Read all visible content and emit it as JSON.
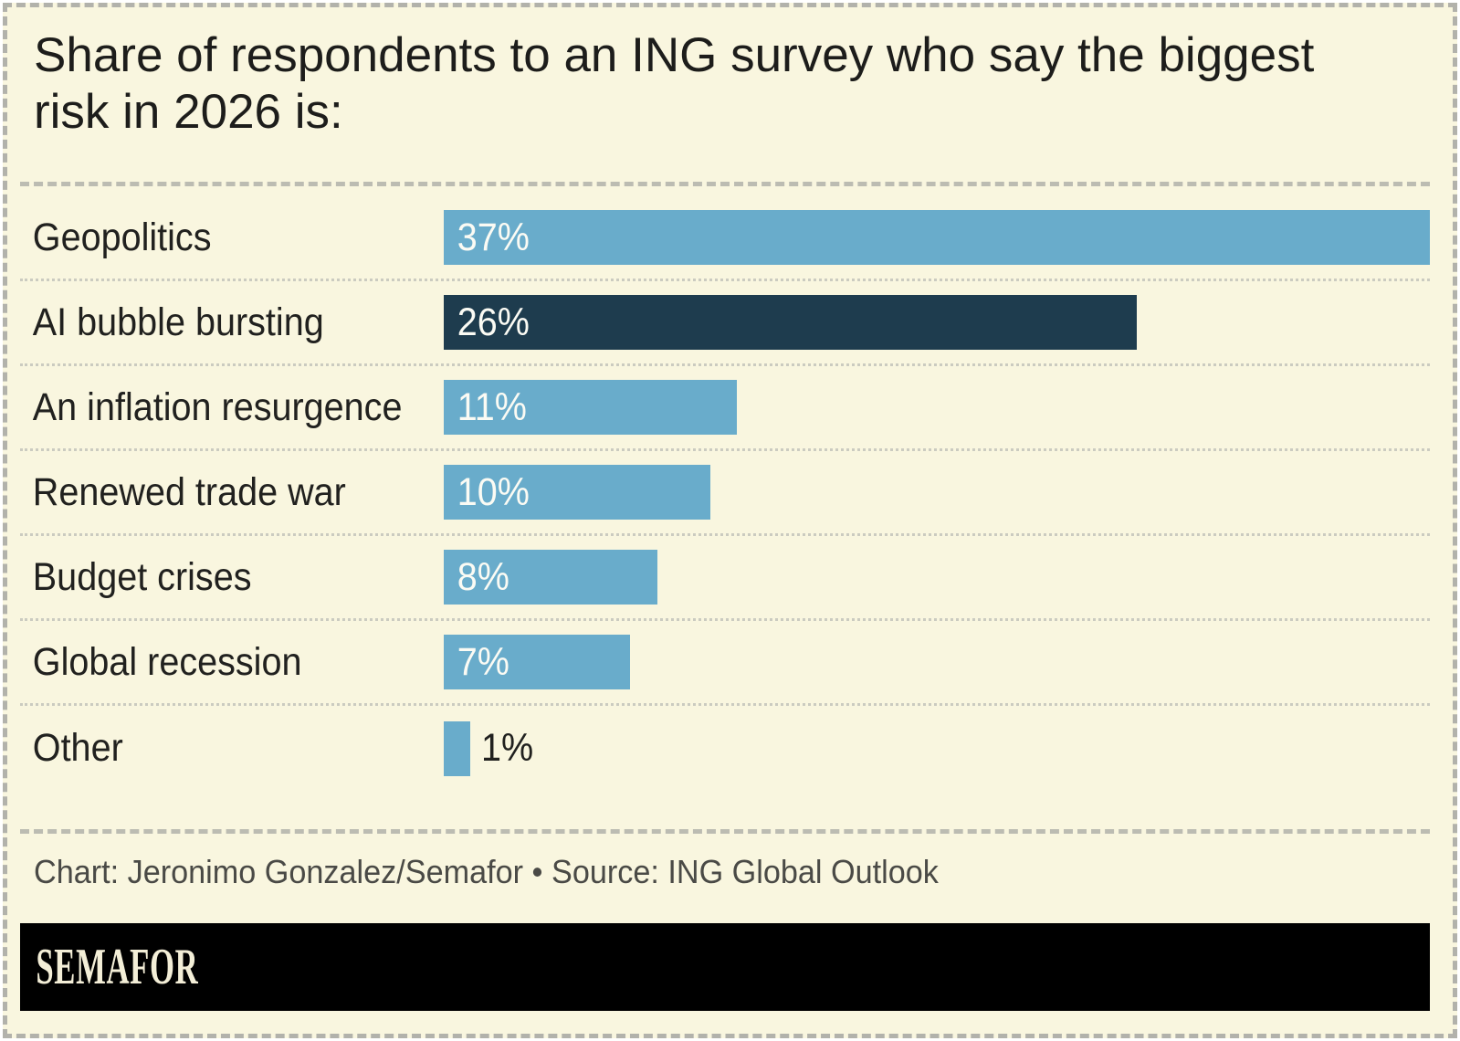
{
  "title": {
    "full": "Share of respondents to an ING survey who say the biggest risk in 2026 is:",
    "lines": [
      "Share of respondents to an ING survey who say the biggest",
      "risk in 2026 is:"
    ]
  },
  "chart_data": {
    "type": "bar",
    "orientation": "horizontal",
    "title": "Share of respondents to an ING survey who say the biggest risk in 2026 is:",
    "categories": [
      "Geopolitics",
      "AI bubble bursting",
      "An inflation resurgence",
      "Renewed trade war",
      "Budget crises",
      "Global recession",
      "Other"
    ],
    "values": [
      37,
      26,
      11,
      10,
      8,
      7,
      1
    ],
    "value_labels": [
      "37%",
      "26%",
      "11%",
      "10%",
      "8%",
      "7%",
      "1%"
    ],
    "unit": "%",
    "xlim": [
      0,
      37
    ],
    "grid": false,
    "legend": false,
    "highlight_index": 1,
    "bar_color": "#69accb",
    "highlight_color": "#1e3c4e",
    "row_separator_style": "dotted"
  },
  "footer": {
    "credit": "Chart: Jeronimo Gonzalez/Semafor • Source: ING Global Outlook"
  },
  "logo": {
    "text": "SEMAFOR",
    "bg": "#000000",
    "color": "#f3eed7"
  },
  "colors": {
    "background": "#f9f6df",
    "frame_border": "#b2b2ab",
    "separator_dashed": "#bcbcb2",
    "separator_dotted": "#cbcbc0",
    "title_text": "#1d1d1b",
    "label_text": "#21211f",
    "bar_value_text": "#fbfbf4",
    "footer_text": "#4a4a46"
  }
}
